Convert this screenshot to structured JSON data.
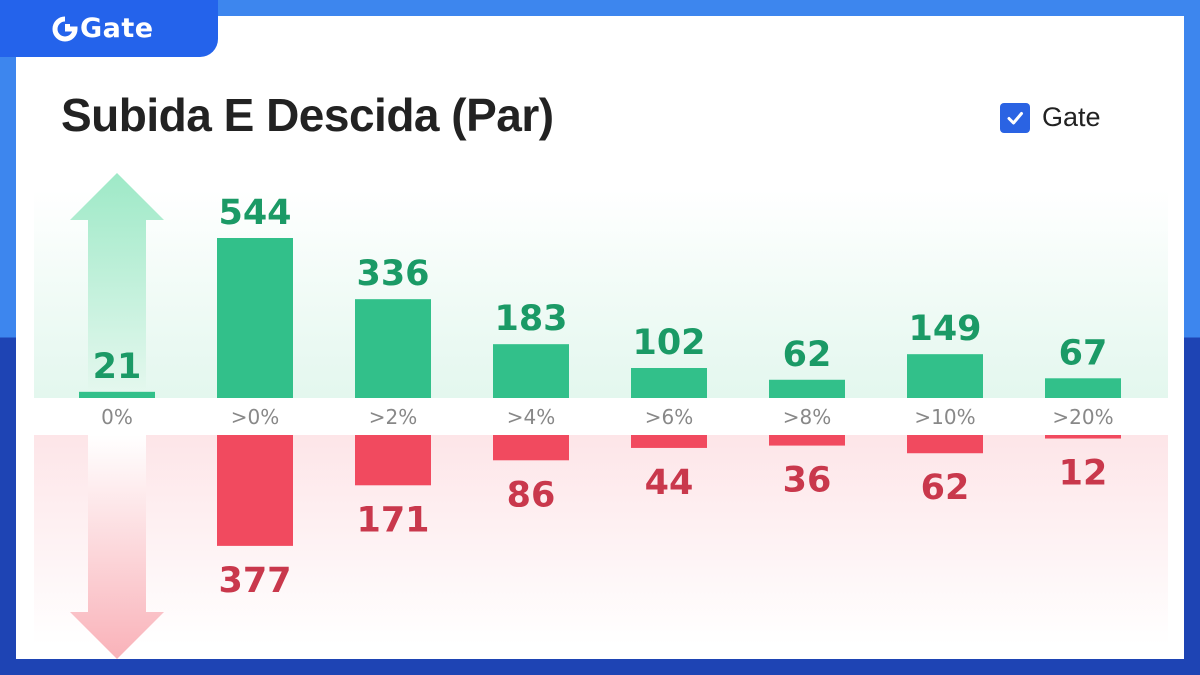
{
  "brand": {
    "name": "Gate",
    "color": "#2463eb"
  },
  "chart_data": {
    "type": "bar",
    "title": "Subida E Descida (Par)",
    "legend": {
      "label": "Gate",
      "checked": true,
      "placement": "top-right"
    },
    "categories": [
      "0%",
      ">0%",
      ">2%",
      ">4%",
      ">6%",
      ">8%",
      ">10%",
      ">20%"
    ],
    "series": [
      {
        "values": [
          21,
          544,
          336,
          183,
          102,
          62,
          149,
          67
        ],
        "color": "#32c08a",
        "label_color": "#1b9a66"
      },
      {
        "values": [
          0,
          377,
          171,
          86,
          44,
          36,
          62,
          12
        ],
        "color": "#f14a5f",
        "label_color": "#c9384c"
      }
    ],
    "direction_icons": [
      "up-arrow",
      "down-arrow"
    ],
    "grid": false
  }
}
